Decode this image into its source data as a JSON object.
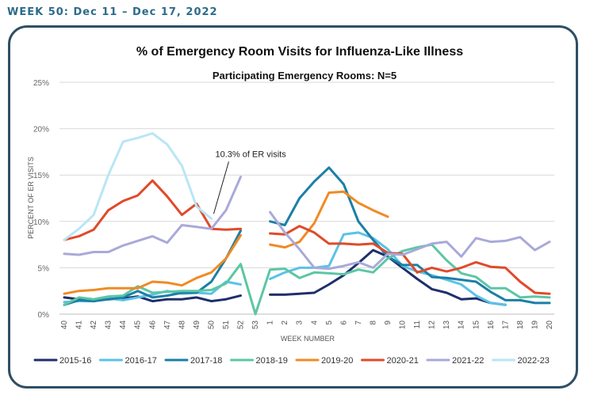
{
  "header": {
    "week_label": "WEEK 50: Dec 11 – Dec 17, 2022"
  },
  "chart_data": {
    "type": "line",
    "title": "% of Emergency Room Visits for Influenza-Like Illness",
    "subtitle": "Participating Emergency Rooms: N=5",
    "xlabel": "WEEK NUMBER",
    "ylabel": "PERCENT OF ER VISITS",
    "ylim": [
      0,
      25
    ],
    "yticks": [
      "0%",
      "5%",
      "10%",
      "15%",
      "20%",
      "25%"
    ],
    "grid": "horizontal",
    "legend": "bottom",
    "annotation": {
      "text": "10.3% of ER visits",
      "x": "50",
      "y": 10.3,
      "series": "2022-23"
    },
    "x": [
      "40",
      "41",
      "42",
      "43",
      "44",
      "45",
      "46",
      "47",
      "48",
      "49",
      "50",
      "51",
      "52",
      "53",
      "1",
      "2",
      "3",
      "4",
      "5",
      "6",
      "7",
      "8",
      "9",
      "10",
      "11",
      "12",
      "13",
      "14",
      "15",
      "16",
      "17",
      "18",
      "19",
      "20"
    ],
    "series": [
      {
        "name": "2015-16",
        "color": "#1f2f6b",
        "values": [
          1.8,
          1.6,
          1.5,
          1.6,
          1.7,
          1.9,
          1.4,
          1.6,
          1.6,
          1.8,
          1.4,
          1.6,
          2.0,
          null,
          2.1,
          2.1,
          2.2,
          2.3,
          3.2,
          4.2,
          5.5,
          6.9,
          6.2,
          5.0,
          3.8,
          2.7,
          2.3,
          1.6,
          1.7,
          1.2,
          1.0,
          null,
          null,
          null
        ]
      },
      {
        "name": "2016-17",
        "color": "#5bc2e7",
        "values": [
          1.3,
          1.4,
          1.4,
          1.7,
          1.5,
          1.8,
          2.1,
          2.5,
          2.2,
          2.3,
          2.2,
          3.5,
          3.2,
          null,
          3.8,
          4.5,
          5.0,
          5.0,
          5.2,
          8.6,
          8.8,
          8.2,
          7.0,
          5.2,
          4.6,
          4.2,
          3.7,
          3.2,
          2.0,
          1.2,
          1.0,
          null,
          null,
          null
        ]
      },
      {
        "name": "2017-18",
        "color": "#1b7fa6",
        "values": [
          1.0,
          1.5,
          1.4,
          1.6,
          1.8,
          2.5,
          1.8,
          2.0,
          2.3,
          2.3,
          3.5,
          6.0,
          9.0,
          null,
          10.0,
          9.6,
          12.5,
          14.3,
          15.8,
          14.0,
          10.0,
          8.0,
          6.2,
          5.3,
          5.3,
          4.0,
          3.9,
          3.7,
          3.5,
          2.4,
          1.5,
          1.5,
          1.2,
          1.2
        ]
      },
      {
        "name": "2018-19",
        "color": "#5cc6a4",
        "values": [
          1.0,
          1.8,
          1.6,
          1.9,
          2.0,
          3.0,
          2.3,
          2.4,
          2.5,
          2.5,
          2.6,
          3.3,
          5.4,
          0,
          4.8,
          4.9,
          3.9,
          4.5,
          4.4,
          4.3,
          4.8,
          4.5,
          6.0,
          6.8,
          7.2,
          7.5,
          5.8,
          4.4,
          4.0,
          2.8,
          2.8,
          1.8,
          1.9,
          1.8
        ]
      },
      {
        "name": "2019-20",
        "color": "#f08a24",
        "values": [
          2.2,
          2.5,
          2.6,
          2.8,
          2.8,
          2.8,
          3.5,
          3.4,
          3.1,
          3.9,
          4.5,
          6.0,
          8.5,
          null,
          7.5,
          7.2,
          7.8,
          9.8,
          13.1,
          13.2,
          12.0,
          11.2,
          10.5,
          null,
          null,
          null,
          null,
          null,
          null,
          null,
          null,
          null,
          null,
          null
        ]
      },
      {
        "name": "2020-21",
        "color": "#e04a2a",
        "values": [
          8.0,
          8.4,
          9.1,
          11.2,
          12.2,
          12.8,
          14.4,
          12.7,
          10.7,
          11.9,
          9.2,
          9.1,
          9.2,
          null,
          8.7,
          8.6,
          9.5,
          8.8,
          7.6,
          7.6,
          7.5,
          7.6,
          6.6,
          6.5,
          4.5,
          5.0,
          4.6,
          5.0,
          5.6,
          5.1,
          5.0,
          3.5,
          2.3,
          2.2
        ]
      },
      {
        "name": "2021-22",
        "color": "#a9a9d9",
        "values": [
          6.5,
          6.4,
          6.7,
          6.7,
          7.4,
          7.9,
          8.4,
          7.7,
          9.6,
          9.4,
          9.2,
          11.2,
          14.8,
          null,
          11.0,
          8.8,
          7.0,
          5.0,
          4.9,
          5.2,
          5.6,
          5.0,
          6.5,
          6.4,
          7.0,
          7.6,
          7.8,
          6.2,
          8.2,
          7.8,
          7.9,
          8.3,
          6.9,
          7.8
        ]
      },
      {
        "name": "2022-23",
        "color": "#b9e6f5",
        "values": [
          8.0,
          9.2,
          10.7,
          15.0,
          18.6,
          19.0,
          19.5,
          18.3,
          16.0,
          11.6,
          10.3,
          null,
          null,
          null,
          null,
          null,
          null,
          null,
          null,
          null,
          null,
          null,
          null,
          null,
          null,
          null,
          null,
          null,
          null,
          null,
          null,
          null,
          null,
          null
        ]
      }
    ]
  }
}
